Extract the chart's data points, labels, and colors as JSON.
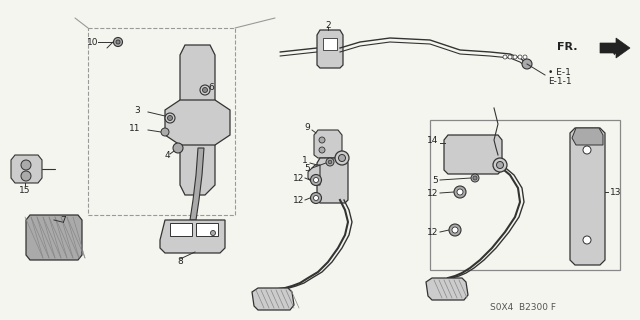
{
  "bg_color": "#f5f5f0",
  "line_color": "#333333",
  "dark_color": "#222222",
  "gray1": "#cccccc",
  "gray2": "#aaaaaa",
  "gray3": "#888888",
  "diagram_code": "S0X4  B2300 F",
  "fr_label": "FR.",
  "e1_label": "E-1",
  "e11_label": "E-1-1",
  "figsize": [
    6.4,
    3.2
  ],
  "dpi": 100
}
